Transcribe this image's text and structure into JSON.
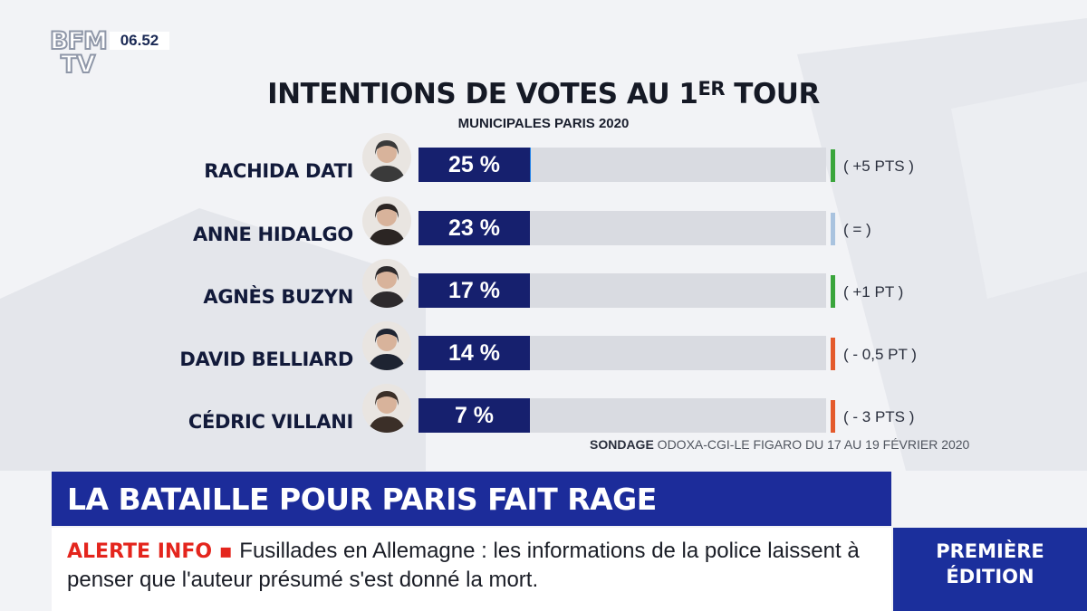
{
  "channel": {
    "logo_top": "BFM",
    "logo_bottom": "TV",
    "time": "06.52"
  },
  "chart_data": {
    "type": "bar",
    "title_main": "INTENTIONS DE VOTES AU 1",
    "title_sup": "ER",
    "title_end": " TOUR",
    "subtitle": "MUNICIPALES PARIS 2020",
    "unit": "%",
    "xlim": [
      0,
      100
    ],
    "categories": [
      "RACHIDA  DATI",
      "ANNE HIDALGO",
      "AGNÈS BUZYN",
      "DAVID BELLIARD",
      "CÉDRIC  VILLANI"
    ],
    "values": [
      25,
      23,
      17,
      14,
      7
    ],
    "value_labels": [
      "25 %",
      "23 %",
      "17 %",
      "14 %",
      "7 %"
    ],
    "changes": [
      "( +5 PTS )",
      "( = )",
      "( +1 PT )",
      "( - 0,5 PT )",
      "( - 3 PTS )"
    ],
    "change_colors": [
      "#3aa53c",
      "#a9c3df",
      "#3aa53c",
      "#e45a2c",
      "#e45a2c"
    ],
    "bar_color": "#1f81e8",
    "label_color": "#16206e",
    "source_label": "SONDAGE",
    "source_text": " ODOXA-CGI-LE FIGARO DU 17 AU 19 FÉVRIER 2020"
  },
  "headline": "LA BATAILLE POUR PARIS FAIT RAGE",
  "ticker": {
    "alert": "ALERTE INFO",
    "bullet": " ▪ ",
    "text": "Fusillades en Allemagne : les informations de la police laissent à penser que l'auteur présumé s'est donné la mort."
  },
  "edition": {
    "line1": "PREMIÈRE",
    "line2": "ÉDITION"
  }
}
